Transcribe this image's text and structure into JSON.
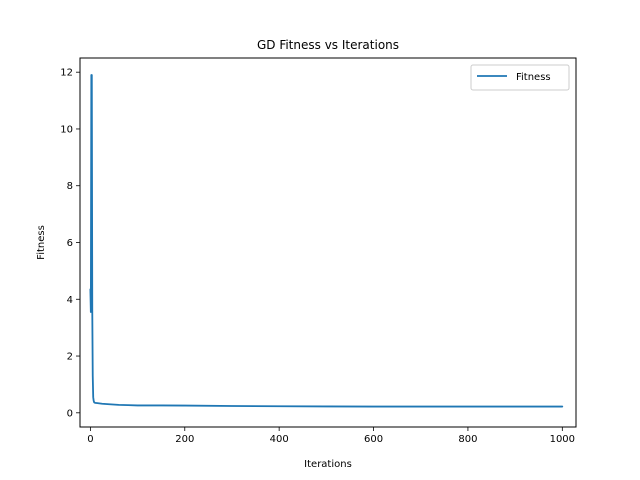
{
  "chart_data": {
    "type": "line",
    "title": "GD Fitness vs Iterations",
    "xlabel": "Iterations",
    "ylabel": "Fitness",
    "xlim": [
      -22,
      1029
    ],
    "ylim": [
      -0.5,
      12.5
    ],
    "xticks": [
      0,
      200,
      400,
      600,
      800,
      1000
    ],
    "yticks": [
      0,
      2,
      4,
      6,
      8,
      10,
      12
    ],
    "xtick_labels": [
      "0",
      "200",
      "400",
      "600",
      "800",
      "1000"
    ],
    "ytick_labels": [
      "0",
      "2",
      "4",
      "6",
      "8",
      "10",
      "12"
    ],
    "grid": false,
    "legend_position": "top-right",
    "series": [
      {
        "name": "Fitness",
        "color": "#1f77b4",
        "x": [
          0,
          1,
          2,
          3,
          4,
          5,
          6,
          7,
          8,
          10,
          15,
          25,
          40,
          60,
          80,
          100,
          120,
          150,
          200,
          300,
          400,
          500,
          600,
          700,
          800,
          900,
          1000
        ],
        "y": [
          4.35,
          3.55,
          11.9,
          11.9,
          3.6,
          1.3,
          0.55,
          0.42,
          0.37,
          0.35,
          0.34,
          0.32,
          0.3,
          0.28,
          0.27,
          0.26,
          0.26,
          0.26,
          0.255,
          0.24,
          0.23,
          0.225,
          0.22,
          0.22,
          0.22,
          0.22,
          0.22
        ]
      }
    ]
  }
}
